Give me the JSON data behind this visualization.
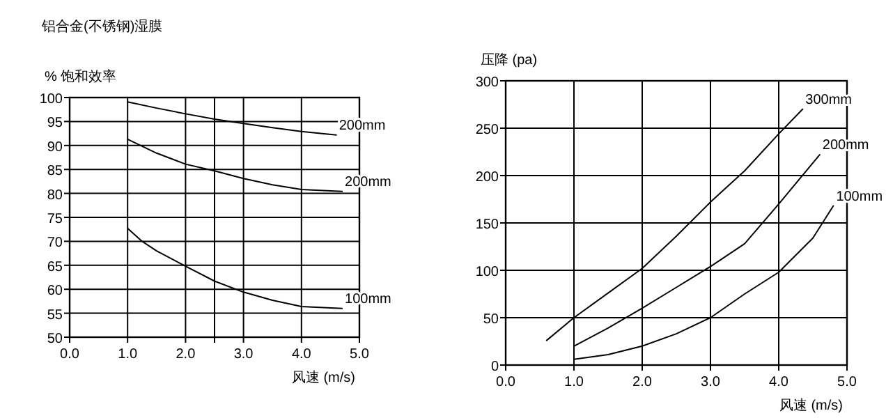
{
  "chart_data": [
    {
      "type": "line",
      "title": "铝合金(不锈钢)湿膜",
      "ylabel": "%   饱和效率",
      "xlabel": "风速   (m/s)",
      "xlim": [
        0,
        5
      ],
      "ylim": [
        50,
        100
      ],
      "xticks": [
        {
          "value": 0,
          "label": "0.0"
        },
        {
          "value": 1,
          "label": "1.0"
        },
        {
          "value": 2,
          "label": "2.0"
        },
        {
          "value": 2.5,
          "label": null
        },
        {
          "value": 3,
          "label": "3.0"
        },
        {
          "value": 4,
          "label": "4.0"
        },
        {
          "value": 5,
          "label": "5.0"
        }
      ],
      "yticks": [
        50,
        55,
        60,
        65,
        70,
        75,
        80,
        85,
        90,
        95,
        100
      ],
      "grid": true,
      "series": [
        {
          "name": "200mm",
          "color": "#000000",
          "x": [
            1,
            1.5,
            2,
            2.5,
            3,
            3.5,
            4,
            4.6
          ],
          "values": [
            99.1,
            97.8,
            96.6,
            95.5,
            94.6,
            93.7,
            92.9,
            92.2
          ]
        },
        {
          "name": "200mm",
          "color": "#000000",
          "x": [
            1,
            1.5,
            2,
            2.5,
            3,
            3.5,
            4,
            4.7
          ],
          "values": [
            91.3,
            88.4,
            86.1,
            84.7,
            83.1,
            81.8,
            80.8,
            80.4
          ]
        },
        {
          "name": "100mm",
          "color": "#000000",
          "x": [
            1,
            1.25,
            1.5,
            2,
            2.5,
            3,
            3.5,
            4,
            4.7
          ],
          "values": [
            72.7,
            70,
            68,
            64.8,
            61.7,
            59.4,
            57.7,
            56.4,
            56
          ]
        }
      ]
    },
    {
      "type": "line",
      "ylabel": "压降   (pa)",
      "xlabel": "风速   (m/s)",
      "xlim": [
        0,
        5
      ],
      "ylim": [
        0,
        300
      ],
      "xticks": [
        {
          "value": 0,
          "label": "0.0"
        },
        {
          "value": 1,
          "label": "1.0"
        },
        {
          "value": 2,
          "label": "2.0"
        },
        {
          "value": 3,
          "label": "3.0"
        },
        {
          "value": 4,
          "label": "4.0"
        },
        {
          "value": 5,
          "label": "5.0"
        }
      ],
      "yticks": [
        0,
        50,
        100,
        150,
        200,
        250,
        300
      ],
      "grid": true,
      "series": [
        {
          "name": "300mm",
          "color": "#000000",
          "x": [
            0.6,
            1,
            1.5,
            2,
            2.5,
            3,
            3.5,
            4,
            4.35
          ],
          "values": [
            26,
            50,
            76,
            102,
            136,
            172,
            205,
            244,
            270
          ]
        },
        {
          "name": "200mm",
          "color": "#000000",
          "x": [
            1,
            1.5,
            2,
            2.5,
            3,
            3.5,
            4,
            4.6
          ],
          "values": [
            20,
            39,
            60,
            82,
            104,
            128,
            170,
            222
          ]
        },
        {
          "name": "100mm",
          "color": "#000000",
          "x": [
            1,
            1.5,
            2,
            2.5,
            3,
            3.5,
            4,
            4.5,
            4.8
          ],
          "values": [
            6,
            11,
            20,
            33,
            50,
            75,
            98,
            134,
            168
          ]
        }
      ]
    }
  ]
}
